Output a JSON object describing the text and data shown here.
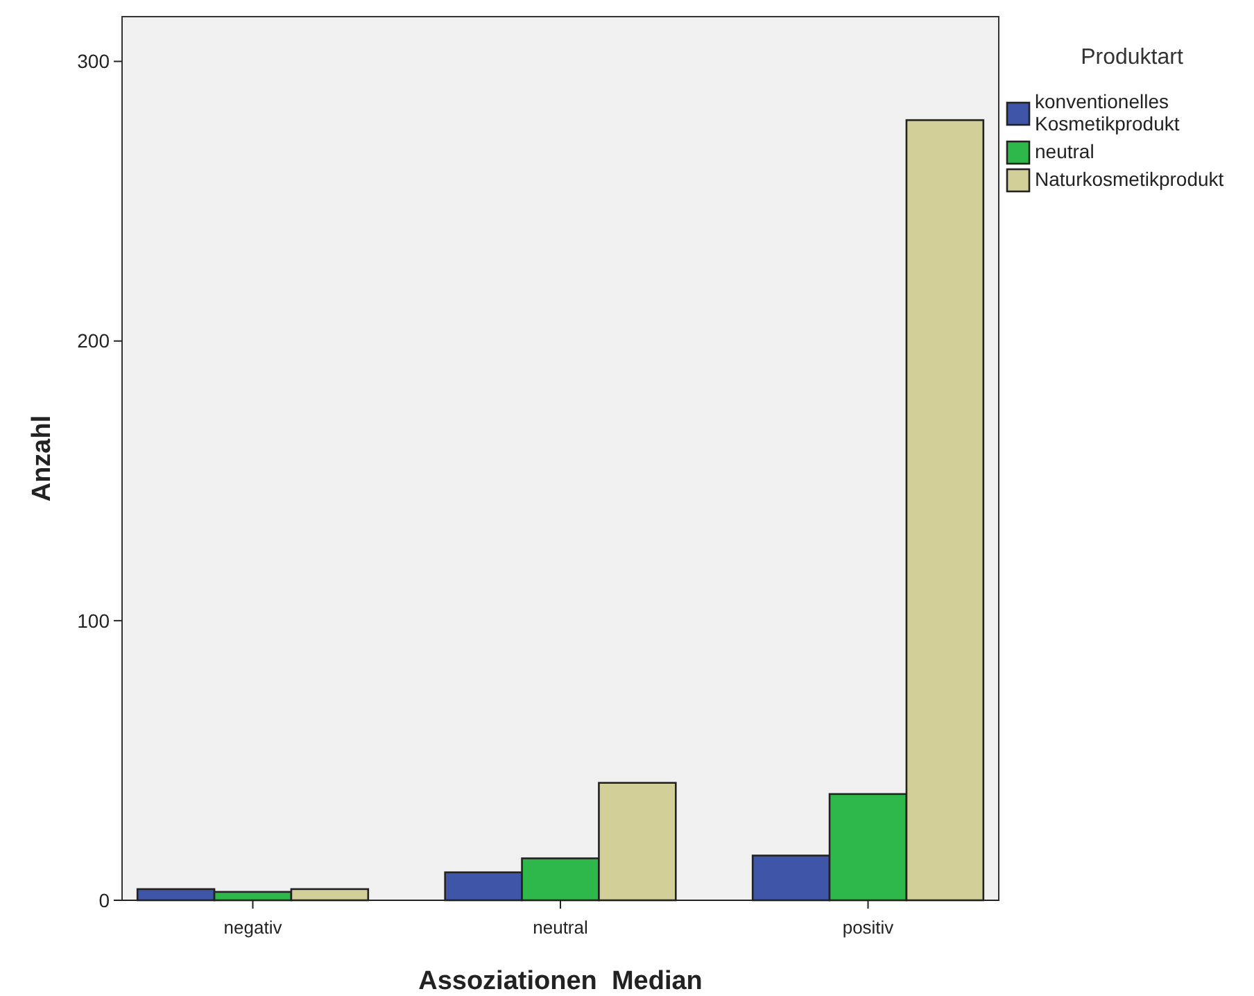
{
  "chart_data": {
    "type": "bar",
    "xlabel": "Assoziationen  Median",
    "ylabel": "Anzahl",
    "legend_title": "Produktart",
    "categories": [
      "negativ",
      "neutral",
      "positiv"
    ],
    "series": [
      {
        "name": "konventionelles Kosmetikprodukt",
        "color": "#3f56a8",
        "values": [
          4,
          10,
          16
        ]
      },
      {
        "name": "neutral",
        "color": "#2eb84a",
        "values": [
          3,
          15,
          38
        ]
      },
      {
        "name": "Naturkosmetikprodukt",
        "color": "#d3cf98",
        "values": [
          4,
          42,
          279
        ]
      }
    ],
    "ylim": [
      0,
      316
    ],
    "yticks": [
      0,
      100,
      200,
      300
    ],
    "grid": false,
    "legend": "right"
  }
}
